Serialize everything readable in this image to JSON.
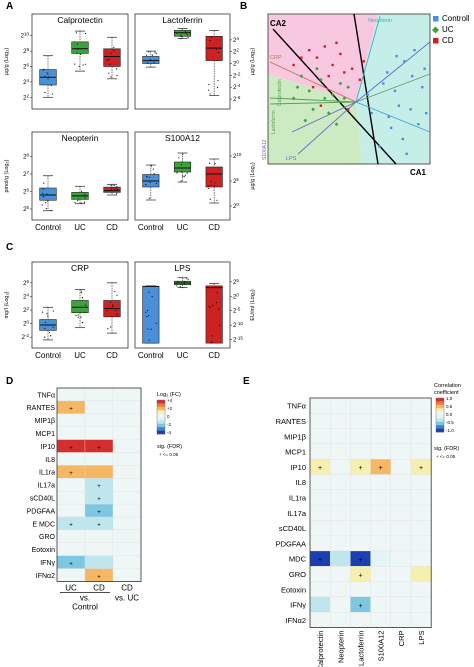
{
  "panel_letters": [
    "A",
    "B",
    "C",
    "D",
    "E"
  ],
  "colors": {
    "control": "#4a90d9",
    "uc": "#3aa33a",
    "cd": "#cc2222",
    "gray": "#444444",
    "bg_pink": "#f7c8e0",
    "bg_green": "#cdebc3",
    "bg_cyan": "#c6eee9"
  },
  "groups": [
    "Control",
    "UC",
    "CD"
  ],
  "chart_data": [
    {
      "type": "box",
      "panel": "A",
      "title": "Calprotectin",
      "ylabel": "µg/g (Log₂)",
      "ytick_labels": [
        "2^10",
        "2^8",
        "2^6",
        "2^4",
        "2^2"
      ],
      "ytick_values": [
        10,
        8,
        6,
        4,
        2
      ],
      "ylim": [
        1,
        11
      ],
      "axis_side": "left",
      "boxes": [
        {
          "group": "Control",
          "whisker_low": 2.0,
          "q1": 3.6,
          "median": 4.6,
          "q3": 5.6,
          "whisker_high": 7.4
        },
        {
          "group": "UC",
          "whisker_low": 5.4,
          "q1": 7.7,
          "median": 8.3,
          "q3": 9.2,
          "whisker_high": 10.6
        },
        {
          "group": "CD",
          "whisker_low": 4.4,
          "q1": 6.0,
          "median": 7.3,
          "q3": 8.3,
          "whisker_high": 9.8
        }
      ]
    },
    {
      "type": "box",
      "panel": "A",
      "title": "Lactoferrin",
      "ylabel": "µg/g (Log₂)",
      "ytick_labels": [
        "2^4",
        "2^2",
        "2^0",
        "2^-2",
        "2^-4",
        "2^-6"
      ],
      "ytick_values": [
        4,
        2,
        0,
        -2,
        -4,
        -6
      ],
      "ylim": [
        -7,
        6
      ],
      "axis_side": "right",
      "boxes": [
        {
          "group": "Control",
          "whisker_low": -0.6,
          "q1": 0.0,
          "median": 0.5,
          "q3": 1.2,
          "whisker_high": 2.1
        },
        {
          "group": "UC",
          "whisker_low": 4.2,
          "q1": 4.6,
          "median": 5.2,
          "q3": 5.6,
          "whisker_high": 5.9
        },
        {
          "group": "CD",
          "whisker_low": -5.4,
          "q1": 0.5,
          "median": 2.6,
          "q3": 4.6,
          "whisker_high": 5.6
        }
      ]
    },
    {
      "type": "box",
      "panel": "A",
      "title": "Neopterin",
      "ylabel": "pmol/g (Log₂)",
      "ytick_labels": [
        "2^8",
        "2^7",
        "2^6",
        "2^5"
      ],
      "ytick_values": [
        8,
        7,
        6,
        5
      ],
      "ylim": [
        4.6,
        8.6
      ],
      "axis_side": "left",
      "boxes": [
        {
          "group": "Control",
          "whisker_low": 4.9,
          "q1": 5.5,
          "median": 5.8,
          "q3": 6.2,
          "whisker_high": 6.9
        },
        {
          "group": "UC",
          "whisker_low": 5.3,
          "q1": 5.55,
          "median": 5.75,
          "q3": 5.95,
          "whisker_high": 6.3
        },
        {
          "group": "CD",
          "whisker_low": 5.8,
          "q1": 5.95,
          "median": 6.05,
          "q3": 6.25,
          "whisker_high": 6.4
        }
      ]
    },
    {
      "type": "box",
      "panel": "A",
      "title": "S100A12",
      "ylabel": "µg/g (Log₂)",
      "ytick_labels": [
        "2^10",
        "2^5",
        "2^0"
      ],
      "ytick_values": [
        10,
        5,
        0
      ],
      "ylim": [
        -2,
        12
      ],
      "axis_side": "right",
      "boxes": [
        {
          "group": "Control",
          "whisker_low": 1.2,
          "q1": 3.8,
          "median": 5.0,
          "q3": 6.3,
          "whisker_high": 8.2
        },
        {
          "group": "UC",
          "whisker_low": 4.8,
          "q1": 6.8,
          "median": 7.6,
          "q3": 8.8,
          "whisker_high": 10.6
        },
        {
          "group": "CD",
          "whisker_low": 0.6,
          "q1": 3.8,
          "median": 6.4,
          "q3": 7.8,
          "whisker_high": 9.4
        }
      ]
    },
    {
      "type": "box",
      "panel": "C",
      "title": "CRP",
      "ylabel": "mg/l (Log₂)",
      "ytick_labels": [
        "2^6",
        "2^4",
        "2^2",
        "2^0",
        "2^-2"
      ],
      "ytick_values": [
        6,
        4,
        2,
        0,
        -2
      ],
      "ylim": [
        -3,
        7
      ],
      "axis_side": "left",
      "boxes": [
        {
          "group": "Control",
          "whisker_low": -2.4,
          "q1": -1.0,
          "median": -0.2,
          "q3": 0.6,
          "whisker_high": 2.4
        },
        {
          "group": "UC",
          "whisker_low": -0.6,
          "q1": 1.6,
          "median": 2.4,
          "q3": 3.4,
          "whisker_high": 5.0
        },
        {
          "group": "CD",
          "whisker_low": -1.4,
          "q1": 1.0,
          "median": 2.2,
          "q3": 3.4,
          "whisker_high": 6.0
        }
      ]
    },
    {
      "type": "box",
      "panel": "C",
      "title": "LPS",
      "ylabel": "EU/ml (Log₂)",
      "ytick_labels": [
        "2^5",
        "2^0",
        "2^-5",
        "2^-10",
        "2^-15"
      ],
      "ytick_values": [
        5,
        0,
        -5,
        -10,
        -15
      ],
      "ylim": [
        -16.5,
        7
      ],
      "axis_side": "right",
      "boxes": [
        {
          "group": "Control",
          "whisker_low": -16.2,
          "q1": -16.2,
          "median": 3.4,
          "q3": 3.4,
          "whisker_high": 3.6
        },
        {
          "group": "UC",
          "whisker_low": 3.0,
          "q1": 4.0,
          "median": 4.6,
          "q3": 5.2,
          "whisker_high": 6.4
        },
        {
          "group": "CD",
          "whisker_low": -16.2,
          "q1": -16.2,
          "median": 3.0,
          "q3": 3.6,
          "whisker_high": 4.4
        }
      ]
    },
    {
      "type": "scatter",
      "panel": "B",
      "xlabel": "CA1",
      "ylabel": "CA2",
      "legend": [
        "Controll",
        "UC",
        "CD"
      ],
      "legend_position": "top-right",
      "vector_labels": [
        "Neopterin",
        "CRP",
        "Lactoferrin",
        "Calprotectin",
        "S100A12",
        "LPS"
      ],
      "xlim": [
        -1,
        1
      ],
      "ylim": [
        -1,
        1
      ],
      "points": {
        "Controll": [
          [
            0.62,
            0.55
          ],
          [
            0.72,
            0.35
          ],
          [
            0.85,
            0.2
          ],
          [
            0.5,
            0.15
          ],
          [
            0.55,
            -0.05
          ],
          [
            0.7,
            -0.1
          ],
          [
            0.8,
            -0.3
          ],
          [
            0.45,
            -0.35
          ],
          [
            0.6,
            -0.5
          ],
          [
            0.3,
            -0.6
          ],
          [
            0.9,
            -0.15
          ],
          [
            0.4,
            0.4
          ],
          [
            0.35,
            0.25
          ],
          [
            0.75,
            0.7
          ],
          [
            0.2,
            -0.15
          ],
          [
            0.65,
            -0.7
          ],
          [
            0.52,
            0.62
          ],
          [
            0.88,
            0.45
          ],
          [
            0.15,
            0.1
          ],
          [
            0.42,
            -0.2
          ]
        ],
        "UC": [
          [
            -0.45,
            0.3
          ],
          [
            -0.6,
            0.15
          ],
          [
            -0.3,
            0.1
          ],
          [
            -0.7,
            0.35
          ],
          [
            -0.2,
            0.25
          ],
          [
            -0.55,
            -0.1
          ],
          [
            -0.8,
            0.05
          ],
          [
            -0.35,
            -0.15
          ],
          [
            -0.15,
            0.05
          ],
          [
            -0.5,
            0.45
          ],
          [
            -0.65,
            -0.25
          ],
          [
            -0.25,
            -0.3
          ],
          [
            -0.1,
            0.2
          ],
          [
            -0.4,
            0.05
          ],
          [
            -0.75,
            0.2
          ]
        ],
        "CD": [
          [
            -0.5,
            0.6
          ],
          [
            -0.3,
            0.5
          ],
          [
            -0.15,
            0.4
          ],
          [
            -0.6,
            0.7
          ],
          [
            -0.05,
            0.45
          ],
          [
            -0.4,
            0.75
          ],
          [
            -0.8,
            0.5
          ],
          [
            -0.2,
            0.65
          ],
          [
            0.05,
            0.3
          ],
          [
            -0.35,
            0.35
          ],
          [
            -0.45,
            -0.05
          ],
          [
            -0.1,
            -0.1
          ],
          [
            0.1,
            0.55
          ],
          [
            -0.7,
            0.6
          ],
          [
            -0.25,
            0.8
          ],
          [
            -0.55,
            0.2
          ]
        ]
      }
    },
    {
      "type": "heatmap",
      "panel": "D",
      "rows": [
        "TNFα",
        "RANTES",
        "MIP1β",
        "MCP1",
        "IP10",
        "IL8",
        "IL1ra",
        "IL17a",
        "sCD40L",
        "PDGFAA",
        "E MDC",
        "GRO",
        "Eotoxin",
        "IFNγ",
        "IFNα2"
      ],
      "columns": [
        "UC",
        "CD",
        "CD"
      ],
      "column_group_labels": [
        "vs.\nControl",
        "vs. UC"
      ],
      "values": [
        [
          0.0,
          0.0,
          0.0
        ],
        [
          1.2,
          0.3,
          0.0
        ],
        [
          0.0,
          0.0,
          0.0
        ],
        [
          0.0,
          0.0,
          0.0
        ],
        [
          2.6,
          2.4,
          0.0
        ],
        [
          0.0,
          0.0,
          0.0
        ],
        [
          1.0,
          1.0,
          0.0
        ],
        [
          0.0,
          -0.8,
          0.0
        ],
        [
          0.0,
          -0.8,
          0.0
        ],
        [
          0.0,
          -0.9,
          0.0
        ],
        [
          -0.8,
          -0.6,
          0.0
        ],
        [
          0.0,
          0.0,
          0.0
        ],
        [
          0.0,
          0.0,
          0.0
        ],
        [
          -0.9,
          -0.5,
          0.0
        ],
        [
          0.0,
          1.0,
          0.0
        ]
      ],
      "significant": [
        [
          1,
          0
        ],
        [
          4,
          0
        ],
        [
          4,
          1
        ],
        [
          6,
          0
        ],
        [
          7,
          1
        ],
        [
          8,
          1
        ],
        [
          9,
          1
        ],
        [
          10,
          0
        ],
        [
          10,
          1
        ],
        [
          13,
          0
        ],
        [
          14,
          1
        ]
      ],
      "legend_title": "Log₂ (FC)",
      "legend_ticks": [
        "+4",
        "+2",
        "0",
        "-2",
        "-4"
      ],
      "sig_title": "sig. (FDR)",
      "sig_label": "+ <= 0.05"
    },
    {
      "type": "heatmap",
      "panel": "E",
      "rows": [
        "TNFα",
        "RANTES",
        "MIP1β",
        "MCP1",
        "IP10",
        "IL8",
        "IL1ra",
        "IL17a",
        "sCD40L",
        "PDGFAA",
        "MDC",
        "GRO",
        "Eotoxin",
        "IFNγ",
        "IFNα2"
      ],
      "columns": [
        "Calprotectin",
        "Neopterin",
        "Lactoferrin",
        "S100A12",
        "CRP",
        "LPS"
      ],
      "values": [
        [
          0.1,
          0.05,
          0.1,
          0.1,
          0.05,
          0.05
        ],
        [
          0.05,
          0.1,
          0.1,
          0.05,
          0.05,
          0.1
        ],
        [
          0.1,
          0.05,
          0.15,
          0.1,
          0.05,
          0.05
        ],
        [
          0.05,
          0.1,
          0.1,
          0.1,
          0.05,
          0.05
        ],
        [
          0.25,
          0.1,
          0.3,
          0.45,
          0.15,
          0.3
        ],
        [
          0.05,
          0.05,
          0.1,
          0.1,
          0.05,
          0.05
        ],
        [
          0.05,
          0.1,
          0.05,
          0.05,
          0.05,
          0.1
        ],
        [
          0.1,
          0.05,
          0.1,
          0.05,
          0.1,
          0.05
        ],
        [
          0.05,
          0.05,
          0.05,
          0.1,
          0.05,
          0.05
        ],
        [
          0.05,
          0.05,
          0.05,
          0.05,
          0.05,
          0.05
        ],
        [
          -0.95,
          -0.2,
          -0.8,
          -0.15,
          0.1,
          0.05
        ],
        [
          0.1,
          0.05,
          0.3,
          0.1,
          0.05,
          0.2
        ],
        [
          0.05,
          0.1,
          0.05,
          0.05,
          0.1,
          0.05
        ],
        [
          -0.25,
          0.05,
          -0.4,
          0.05,
          0.1,
          0.05
        ],
        [
          0.05,
          0.05,
          0.05,
          0.05,
          0.05,
          0.05
        ]
      ],
      "significant": [
        [
          4,
          0
        ],
        [
          4,
          2
        ],
        [
          4,
          3
        ],
        [
          4,
          5
        ],
        [
          10,
          0
        ],
        [
          10,
          2
        ],
        [
          11,
          2
        ],
        [
          13,
          2
        ]
      ],
      "legend_title": "Correlation\ncoefficient",
      "legend_ticks": [
        "1.0",
        "0.5",
        "0.0",
        "-0.5",
        "-1.0"
      ],
      "sig_title": "sig. (FDR)",
      "sig_label": "+ <= 0.05"
    }
  ]
}
